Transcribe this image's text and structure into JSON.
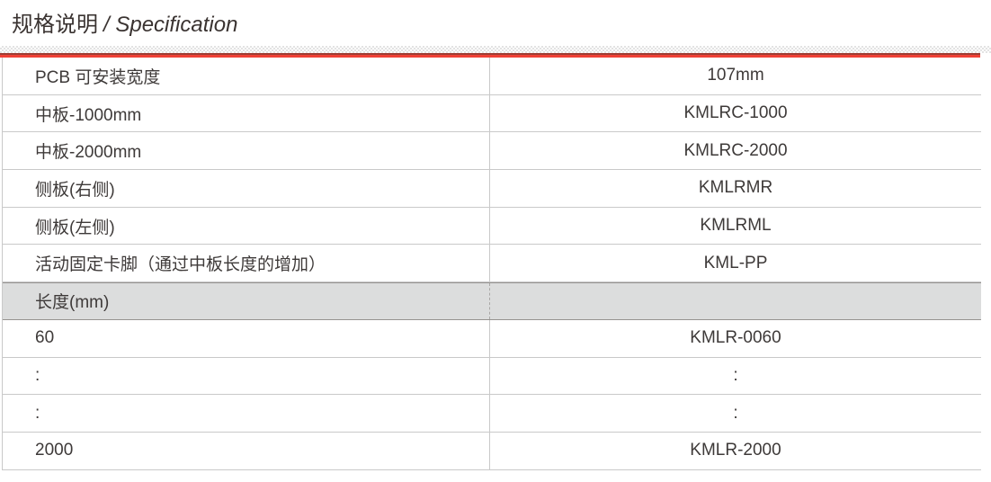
{
  "header": {
    "title_zh": "规格说明",
    "title_en": "/ Specification"
  },
  "colors": {
    "accent_red": "#ef4136",
    "accent_dark_red": "#9e3c33",
    "section_row_bg": "#dcdddd",
    "section_row_border": "#969390",
    "row_border": "#c9c9c9",
    "text_color": "#3e3a39"
  },
  "table": {
    "rows": [
      {
        "label": "PCB 可安装宽度",
        "value": "107mm",
        "section": false
      },
      {
        "label": "中板-1000mm",
        "value": "KMLRC-1000",
        "section": false
      },
      {
        "label": "中板-2000mm",
        "value": "KMLRC-2000",
        "section": false
      },
      {
        "label": "侧板(右侧)",
        "value": "KMLRMR",
        "section": false
      },
      {
        "label": "侧板(左侧)",
        "value": "KMLRML",
        "section": false
      },
      {
        "label": "活动固定卡脚（通过中板长度的增加）",
        "value": "KML-PP",
        "section": false
      },
      {
        "label": "长度(mm)",
        "value": "",
        "section": true
      },
      {
        "label": "60",
        "value": "KMLR-0060",
        "section": false
      },
      {
        "label": ":",
        "value": ":",
        "section": false
      },
      {
        "label": ":",
        "value": ":",
        "section": false
      },
      {
        "label": "2000",
        "value": "KMLR-2000",
        "section": false
      }
    ]
  }
}
